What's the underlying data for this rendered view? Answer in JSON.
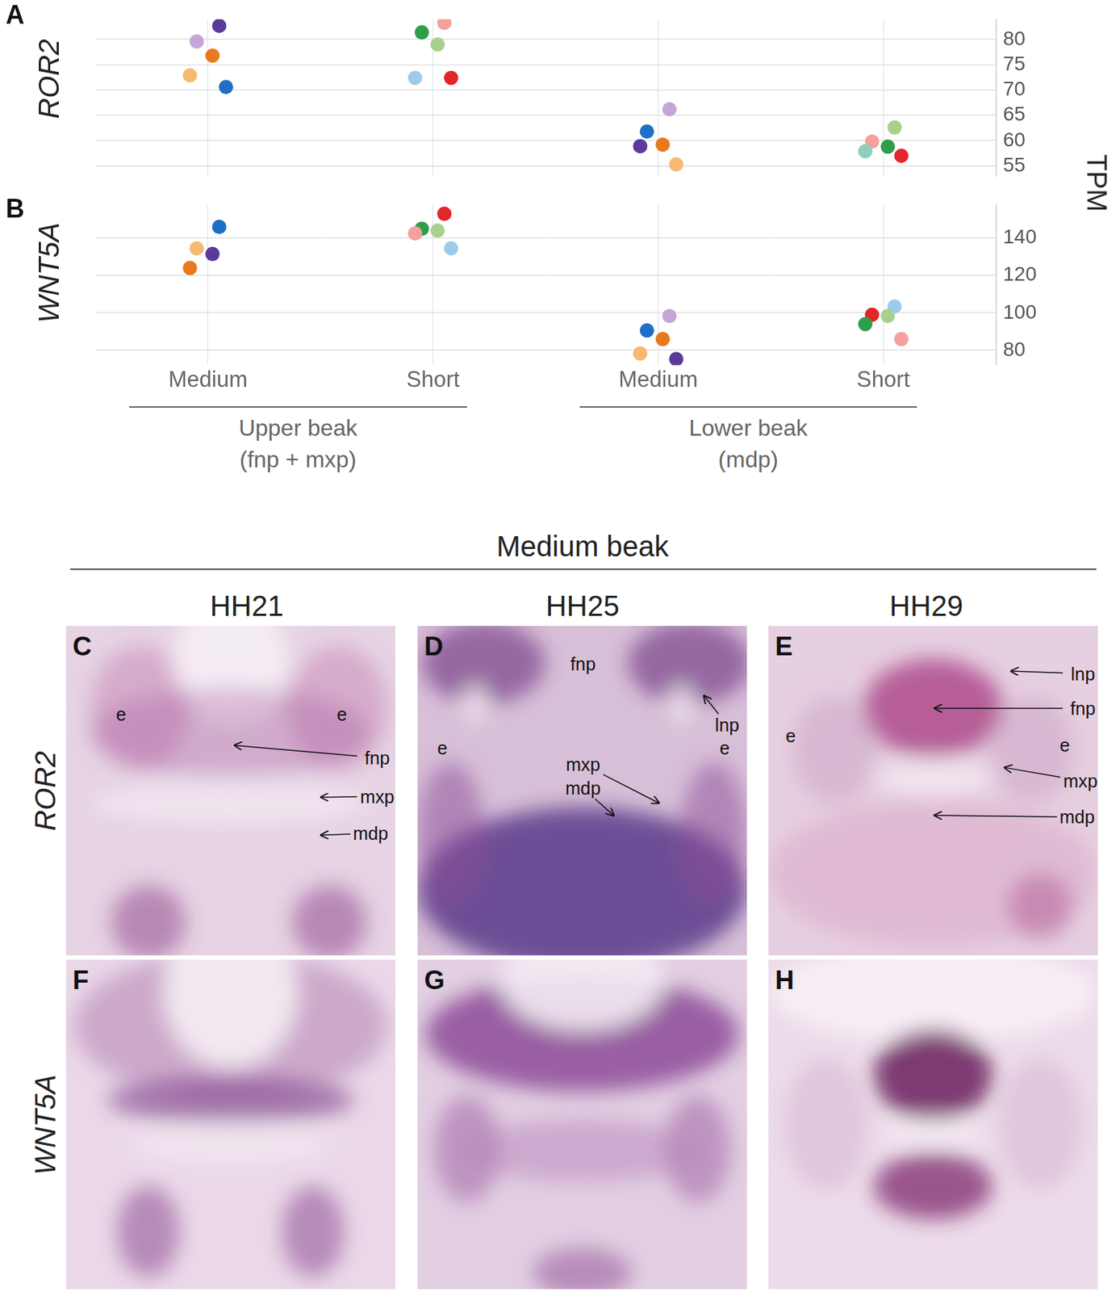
{
  "chart_data": [
    {
      "panel": "A",
      "type": "scatter",
      "title": "ROR2",
      "categories": [
        "Medium",
        "Short",
        "Medium",
        "Short"
      ],
      "values": [
        [
          82.7,
          79.6,
          76.8,
          72.9,
          70.6
        ],
        [
          83.3,
          81.4,
          79.0,
          72.4,
          72.4
        ],
        [
          66.2,
          61.8,
          59.2,
          58.9,
          55.3
        ],
        [
          62.6,
          59.8,
          58.8,
          57.9,
          57.0
        ]
      ],
      "colors": [
        [
          "#5b3a9b",
          "#c4a6d6",
          "#e87a1e",
          "#f5b971",
          "#1f6fc6"
        ],
        [
          "#f4a09c",
          "#2e9e4a",
          "#a8d08d",
          "#9ecbec",
          "#e3262a"
        ],
        [
          "#c4a6d6",
          "#1f6fc6",
          "#e87a1e",
          "#5b3a9b",
          "#f5b971"
        ],
        [
          "#a8d08d",
          "#f4a09c",
          "#2e9e4a",
          "#8fcfc0",
          "#e3262a"
        ]
      ],
      "ylabel": "TPM",
      "ylim": [
        53,
        84
      ],
      "yticks": [
        55,
        60,
        65,
        70,
        75,
        80
      ],
      "grid": true,
      "tick_labels": "y",
      "marker": "circle"
    },
    {
      "panel": "B",
      "type": "scatter",
      "title": "WNT5A",
      "categories": [
        "Medium",
        "Short",
        "Medium",
        "Short"
      ],
      "category_groups": [
        [
          "Upper beak",
          "(fnp + mxp)"
        ],
        [
          "Lower beak",
          "(mdp)"
        ]
      ],
      "values": [
        [
          146,
          134.5,
          131.5,
          124
        ],
        [
          153,
          145,
          144,
          142.5,
          134.5
        ],
        [
          98.3,
          90.6,
          86,
          78.3,
          75.3
        ],
        [
          103.4,
          99,
          98.3,
          94,
          86
        ]
      ],
      "colors": [
        [
          "#1f6fc6",
          "#f5b971",
          "#5b3a9b",
          "#e87a1e"
        ],
        [
          "#e3262a",
          "#2e9e4a",
          "#a8d08d",
          "#f4a09c",
          "#9ecbec"
        ],
        [
          "#c4a6d6",
          "#1f6fc6",
          "#e87a1e",
          "#f5b971",
          "#5b3a9b"
        ],
        [
          "#9ecbec",
          "#e3262a",
          "#a8d08d",
          "#2e9e4a",
          "#f4a09c"
        ]
      ],
      "ylim": [
        72,
        158
      ],
      "yticks": [
        80,
        100,
        120,
        140
      ],
      "grid": true,
      "marker": "circle"
    }
  ],
  "in_situ": {
    "title": "Medium beak",
    "columns": [
      "HH21",
      "HH25",
      "HH29"
    ],
    "rows": [
      {
        "label": "ROR2",
        "panels": [
          {
            "letter": "C",
            "labels": [
              "e",
              "e",
              "fnp",
              "mxp",
              "mdp"
            ]
          },
          {
            "letter": "D",
            "labels": [
              "fnp",
              "lnp",
              "e",
              "e",
              "mxp",
              "mdp"
            ]
          },
          {
            "letter": "E",
            "labels": [
              "lnp",
              "fnp",
              "e",
              "e",
              "mxp",
              "mdp"
            ]
          }
        ]
      },
      {
        "label": "WNT5A",
        "panels": [
          {
            "letter": "F",
            "labels": []
          },
          {
            "letter": "G",
            "labels": []
          },
          {
            "letter": "H",
            "labels": []
          }
        ]
      }
    ]
  }
}
